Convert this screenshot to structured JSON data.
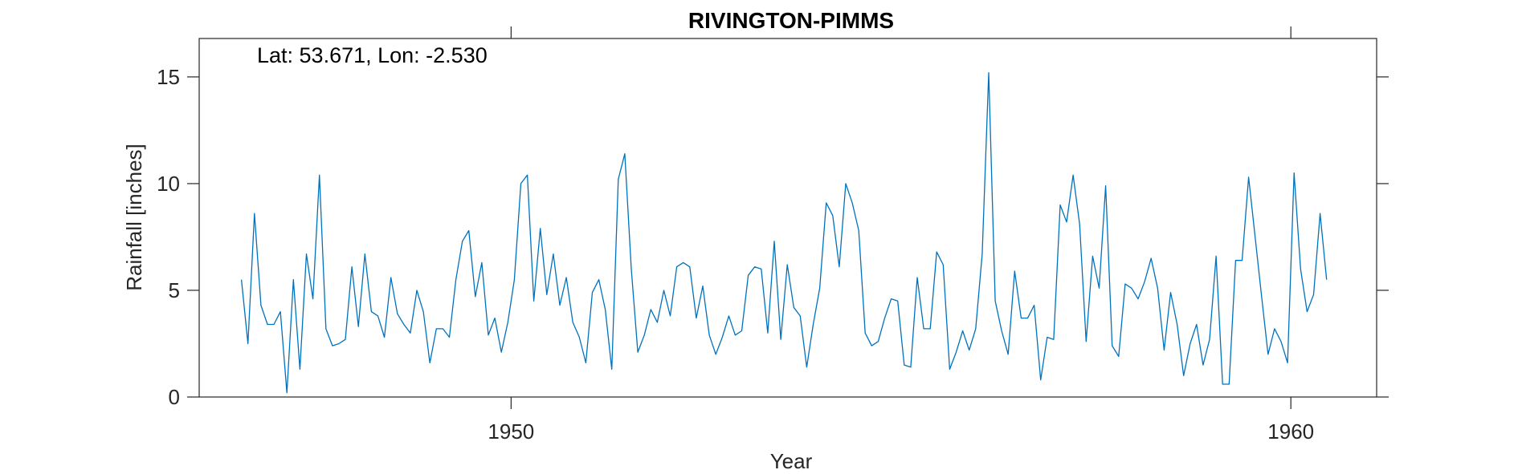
{
  "chart_data": {
    "type": "line",
    "title": "RIVINGTON-PIMMS",
    "xlabel": "Year",
    "ylabel": "Rainfall [inches]",
    "annotation": "Lat: 53.671, Lon: -2.530",
    "xlim": [
      1946,
      1961.1
    ],
    "ylim": [
      0,
      16.8
    ],
    "xticks": [
      1950,
      1960
    ],
    "xtick_labels": [
      "1950",
      "1960"
    ],
    "yticks": [
      0,
      5,
      10,
      15
    ],
    "ytick_labels": [
      "0",
      "5",
      "10",
      "15"
    ],
    "grid": false,
    "line_color": "#0072BD",
    "series": [
      {
        "x_start": 1946.5417,
        "x_step": 0.08333,
        "values": [
          5.5,
          2.5,
          8.6,
          4.3,
          3.4,
          3.4,
          4.0,
          0.2,
          5.5,
          1.3,
          6.7,
          4.6,
          10.4,
          3.2,
          2.4,
          2.5,
          2.7,
          6.1,
          3.3,
          6.7,
          4.0,
          3.8,
          2.8,
          5.6,
          3.9,
          3.4,
          3.0,
          5.0,
          4.0,
          1.6,
          3.2,
          3.2,
          2.8,
          5.5,
          7.3,
          7.8,
          4.7,
          6.3,
          2.9,
          3.7,
          2.1,
          3.5,
          5.5,
          10.0,
          10.4,
          4.5,
          7.9,
          4.8,
          6.7,
          4.3,
          5.6,
          3.5,
          2.8,
          1.6,
          4.9,
          5.5,
          4.1,
          1.3,
          10.2,
          11.4,
          6.0,
          2.1,
          2.9,
          4.1,
          3.5,
          5.0,
          3.8,
          6.1,
          6.3,
          6.1,
          3.7,
          5.2,
          2.9,
          2.0,
          2.8,
          3.8,
          2.9,
          3.1,
          5.7,
          6.1,
          6.0,
          3.0,
          7.3,
          2.7,
          6.2,
          4.2,
          3.8,
          1.4,
          3.4,
          5.1,
          9.1,
          8.5,
          6.1,
          10.0,
          9.1,
          7.8,
          3.0,
          2.4,
          2.6,
          3.7,
          4.6,
          4.5,
          1.5,
          1.4,
          5.6,
          3.2,
          3.2,
          6.8,
          6.2,
          1.3,
          2.1,
          3.1,
          2.2,
          3.2,
          6.7,
          15.2,
          4.5,
          3.1,
          2.0,
          5.9,
          3.7,
          3.7,
          4.3,
          0.8,
          2.8,
          2.7,
          9.0,
          8.2,
          10.4,
          8.1,
          2.6,
          6.6,
          5.1,
          9.9,
          2.4,
          1.9,
          5.3,
          5.1,
          4.6,
          5.4,
          6.5,
          5.1,
          2.2,
          4.9,
          3.4,
          1.0,
          2.5,
          3.4,
          1.5,
          2.7,
          6.6,
          0.6,
          0.6,
          6.4,
          6.4,
          10.3,
          7.5,
          4.7,
          2.0,
          3.2,
          2.6,
          1.6,
          10.5,
          6.0,
          4.0,
          4.8,
          8.6,
          5.5
        ]
      }
    ]
  }
}
